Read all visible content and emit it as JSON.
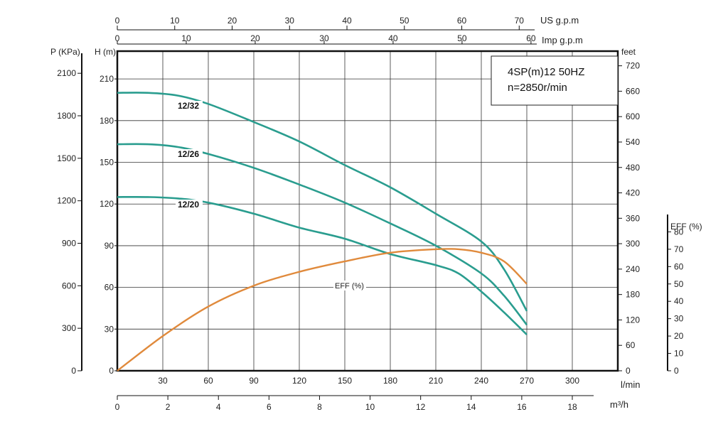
{
  "chart_data": {
    "type": "line",
    "info": {
      "line1": "4SP(m)12  50HZ",
      "line2": "n=2850r/min"
    },
    "x_axis": {
      "unit": "l/min",
      "range": [
        0,
        330
      ],
      "ticks": [
        {
          "v": 30,
          "t": "30"
        },
        {
          "v": 60,
          "t": "60"
        },
        {
          "v": 90,
          "t": "90"
        },
        {
          "v": 120,
          "t": "120"
        },
        {
          "v": 150,
          "t": "150"
        },
        {
          "v": 180,
          "t": "180"
        },
        {
          "v": 210,
          "t": "210"
        },
        {
          "v": 240,
          "t": "240"
        },
        {
          "v": 270,
          "t": "270"
        },
        {
          "v": 300,
          "t": "300"
        }
      ]
    },
    "y_axis": {
      "unit": "H (m)",
      "range": [
        0,
        230
      ],
      "ticks": [
        {
          "v": 0,
          "t": "0"
        },
        {
          "v": 30,
          "t": "30"
        },
        {
          "v": 60,
          "t": "60"
        },
        {
          "v": 90,
          "t": "90"
        },
        {
          "v": 120,
          "t": "120"
        },
        {
          "v": 150,
          "t": "150"
        },
        {
          "v": 180,
          "t": "180"
        },
        {
          "v": 210,
          "t": "210"
        }
      ]
    },
    "pressure_axis": {
      "unit": "P (KPa)",
      "ticks": [
        {
          "v": 0,
          "t": "0"
        },
        {
          "v": 300,
          "t": "300"
        },
        {
          "v": 600,
          "t": "600"
        },
        {
          "v": 900,
          "t": "900"
        },
        {
          "v": 1200,
          "t": "1200"
        },
        {
          "v": 1500,
          "t": "1500"
        },
        {
          "v": 1800,
          "t": "1800"
        },
        {
          "v": 2100,
          "t": "2100"
        }
      ]
    },
    "feet_axis": {
      "unit": "feet",
      "ticks": [
        {
          "v": 0,
          "t": "0"
        },
        {
          "v": 60,
          "t": "60"
        },
        {
          "v": 120,
          "t": "120"
        },
        {
          "v": 180,
          "t": "180"
        },
        {
          "v": 240,
          "t": "240"
        },
        {
          "v": 300,
          "t": "300"
        },
        {
          "v": 360,
          "t": "360"
        },
        {
          "v": 420,
          "t": "420"
        },
        {
          "v": 480,
          "t": "480"
        },
        {
          "v": 540,
          "t": "540"
        },
        {
          "v": 600,
          "t": "600"
        },
        {
          "v": 660,
          "t": "660"
        },
        {
          "v": 720,
          "t": "720"
        }
      ]
    },
    "us_gpm_axis": {
      "unit": "US g.p.m",
      "ticks": [
        {
          "v": 0,
          "t": "0"
        },
        {
          "v": 10,
          "t": "10"
        },
        {
          "v": 20,
          "t": "20"
        },
        {
          "v": 30,
          "t": "30"
        },
        {
          "v": 40,
          "t": "40"
        },
        {
          "v": 50,
          "t": "50"
        },
        {
          "v": 60,
          "t": "60"
        },
        {
          "v": 70,
          "t": "70"
        }
      ]
    },
    "imp_gpm_axis": {
      "unit": "Imp g.p.m",
      "ticks": [
        {
          "v": 0,
          "t": "0"
        },
        {
          "v": 10,
          "t": "10"
        },
        {
          "v": 20,
          "t": "20"
        },
        {
          "v": 30,
          "t": "30"
        },
        {
          "v": 40,
          "t": "40"
        },
        {
          "v": 50,
          "t": "50"
        },
        {
          "v": 60,
          "t": "60"
        }
      ]
    },
    "m3h_axis": {
      "unit": "m³/h",
      "ticks": [
        {
          "v": 0,
          "t": "0"
        },
        {
          "v": 2,
          "t": "2"
        },
        {
          "v": 4,
          "t": "4"
        },
        {
          "v": 6,
          "t": "6"
        },
        {
          "v": 8,
          "t": "8"
        },
        {
          "v": 10,
          "t": "10"
        },
        {
          "v": 12,
          "t": "12"
        },
        {
          "v": 14,
          "t": "14"
        },
        {
          "v": 16,
          "t": "16"
        },
        {
          "v": 18,
          "t": "18"
        }
      ]
    },
    "eff_axis": {
      "unit": "EFF (%)",
      "range": [
        0,
        90
      ],
      "ticks": [
        {
          "v": 0,
          "t": "0"
        },
        {
          "v": 10,
          "t": "10"
        },
        {
          "v": 20,
          "t": "20"
        },
        {
          "v": 30,
          "t": "30"
        },
        {
          "v": 40,
          "t": "40"
        },
        {
          "v": 50,
          "t": "50"
        },
        {
          "v": 60,
          "t": "60"
        },
        {
          "v": 70,
          "t": "70"
        },
        {
          "v": 80,
          "t": "80"
        }
      ]
    },
    "series": [
      {
        "name": "12/32",
        "color": "#2a9d8f",
        "points": [
          [
            0,
            200
          ],
          [
            20,
            200
          ],
          [
            40,
            198
          ],
          [
            60,
            192
          ],
          [
            90,
            179
          ],
          [
            120,
            165
          ],
          [
            150,
            148
          ],
          [
            180,
            132
          ],
          [
            210,
            113
          ],
          [
            240,
            93
          ],
          [
            255,
            73
          ],
          [
            270,
            43
          ]
        ]
      },
      {
        "name": "12/26",
        "color": "#2a9d8f",
        "points": [
          [
            0,
            163
          ],
          [
            20,
            163
          ],
          [
            40,
            161
          ],
          [
            60,
            156
          ],
          [
            90,
            146
          ],
          [
            120,
            134
          ],
          [
            150,
            121
          ],
          [
            180,
            106
          ],
          [
            210,
            90
          ],
          [
            240,
            70
          ],
          [
            255,
            54
          ],
          [
            270,
            33
          ]
        ]
      },
      {
        "name": "12/20",
        "color": "#2a9d8f",
        "points": [
          [
            0,
            125
          ],
          [
            20,
            125
          ],
          [
            40,
            124
          ],
          [
            60,
            121
          ],
          [
            90,
            113
          ],
          [
            120,
            103
          ],
          [
            150,
            95
          ],
          [
            180,
            84
          ],
          [
            210,
            76
          ],
          [
            225,
            70
          ],
          [
            240,
            57
          ],
          [
            255,
            42
          ],
          [
            270,
            26
          ]
        ]
      }
    ],
    "efficiency": {
      "name": "EFF (%)",
      "color": "#e08a3c",
      "points": [
        [
          0,
          0
        ],
        [
          30,
          20
        ],
        [
          60,
          37
        ],
        [
          90,
          49
        ],
        [
          120,
          57
        ],
        [
          150,
          63
        ],
        [
          180,
          68
        ],
        [
          210,
          70
        ],
        [
          225,
          70
        ],
        [
          240,
          68
        ],
        [
          255,
          63
        ],
        [
          270,
          50
        ]
      ]
    }
  }
}
